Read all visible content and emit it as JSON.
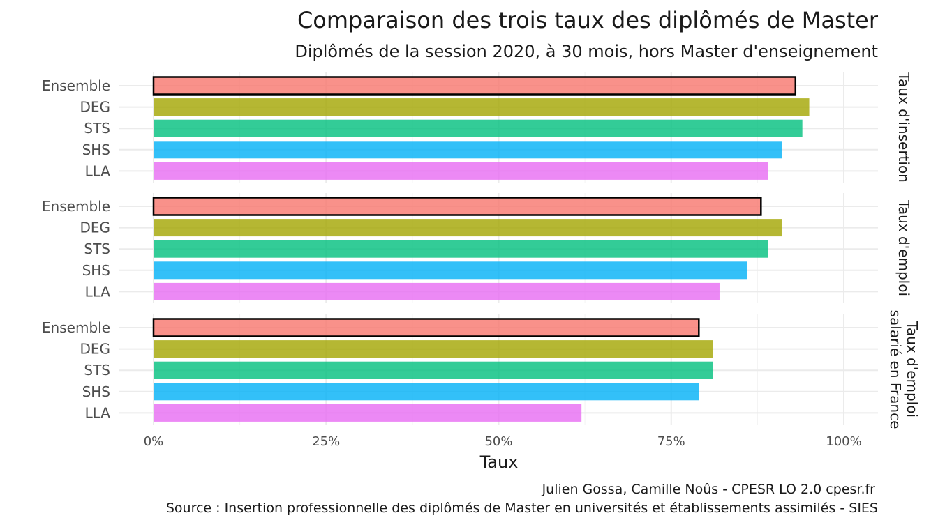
{
  "chart_data": {
    "type": "bar",
    "orientation": "horizontal",
    "title": "Comparaison des trois taux des diplômés de Master",
    "subtitle": "Diplômés de la session 2020, à 30 mois, hors Master d'enseignement",
    "xlabel": "Taux",
    "ylabel": "",
    "xlim": [
      0,
      1.05
    ],
    "x_ticks": [
      {
        "value": 0,
        "label": "0%"
      },
      {
        "value": 0.25,
        "label": "25%"
      },
      {
        "value": 0.5,
        "label": "50%"
      },
      {
        "value": 0.75,
        "label": "75%"
      },
      {
        "value": 1,
        "label": "100%"
      }
    ],
    "categories": [
      "Ensemble",
      "DEG",
      "STS",
      "SHS",
      "LLA"
    ],
    "colors": {
      "Ensemble": "#F8766D",
      "DEG": "#A3A500",
      "STS": "#00BF7D",
      "SHS": "#00B0F6",
      "LLA": "#E76BF3"
    },
    "highlight": "Ensemble",
    "grid": true,
    "legend": "none",
    "facets": [
      {
        "label_lines": [
          "Taux d'insertion"
        ],
        "values": [
          0.93,
          0.95,
          0.94,
          0.91,
          0.89
        ]
      },
      {
        "label_lines": [
          "Taux d'emploi"
        ],
        "values": [
          0.88,
          0.91,
          0.89,
          0.86,
          0.82
        ]
      },
      {
        "label_lines": [
          "Taux d'emploi",
          "salarié en France"
        ],
        "values": [
          0.79,
          0.81,
          0.81,
          0.79,
          0.62
        ]
      }
    ]
  },
  "caption_lines": [
    "Julien Gossa, Camille Noûs - CPESR LO 2.0 cpesr.fr",
    "Source : Insertion professionnelle des diplômés de Master en universités et établissements assimilés - SIES"
  ]
}
